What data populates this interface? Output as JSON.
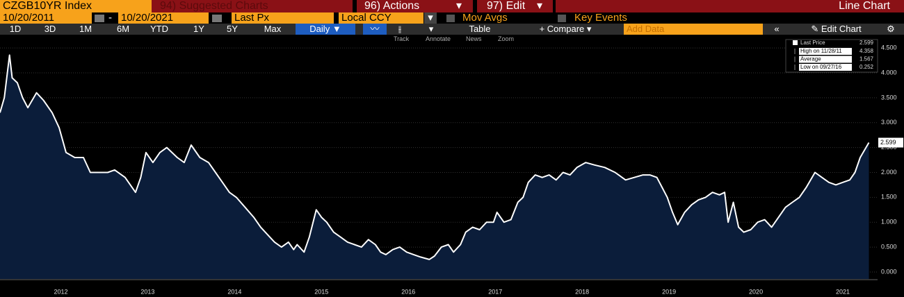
{
  "toolbar": {
    "security": "CZGB10YR Index",
    "suggested": "94) Suggested Charts",
    "actions": "96) Actions",
    "edit": "97) Edit",
    "chart_type": "Line Chart"
  },
  "controls": {
    "start_date": "10/20/2011",
    "end_date": "10/20/2021",
    "field": "Last Px",
    "currency": "Local CCY",
    "mov_avgs": "Mov Avgs",
    "key_events": "Key Events"
  },
  "periods": [
    "1D",
    "3D",
    "1M",
    "6M",
    "YTD",
    "1Y",
    "5Y",
    "Max"
  ],
  "buttons": {
    "frequency": "Daily",
    "table": "Table",
    "compare": "Compare",
    "add_data": "Add Data",
    "edit_chart": "Edit Chart"
  },
  "tools": [
    "Track",
    "Annotate",
    "News",
    "Zoom"
  ],
  "chart_data": {
    "type": "line",
    "x": [
      2011.8,
      2011.85,
      2011.91,
      2011.94,
      2012.0,
      2012.06,
      2012.12,
      2012.22,
      2012.3,
      2012.4,
      2012.48,
      2012.56,
      2012.66,
      2012.76,
      2012.84,
      2012.94,
      2013.04,
      2013.12,
      2013.24,
      2013.36,
      2013.42,
      2013.48,
      2013.56,
      2013.64,
      2013.72,
      2013.84,
      2013.92,
      2014.0,
      2014.1,
      2014.2,
      2014.28,
      2014.36,
      2014.44,
      2014.52,
      2014.62,
      2014.72,
      2014.8,
      2014.88,
      2014.96,
      2015.04,
      2015.12,
      2015.18,
      2015.22,
      2015.3,
      2015.36,
      2015.44,
      2015.5,
      2015.56,
      2015.64,
      2015.72,
      2015.8,
      2015.88,
      2015.96,
      2016.04,
      2016.12,
      2016.18,
      2016.24,
      2016.32,
      2016.4,
      2016.48,
      2016.56,
      2016.64,
      2016.74,
      2016.8,
      2016.88,
      2016.96,
      2017.02,
      2017.1,
      2017.16,
      2017.24,
      2017.32,
      2017.4,
      2017.48,
      2017.52,
      2017.6,
      2017.68,
      2017.76,
      2017.82,
      2017.88,
      2017.96,
      2018.04,
      2018.12,
      2018.2,
      2018.28,
      2018.36,
      2018.44,
      2018.54,
      2018.64,
      2018.76,
      2018.88,
      2019.0,
      2019.1,
      2019.2,
      2019.28,
      2019.36,
      2019.42,
      2019.48,
      2019.54,
      2019.6,
      2019.68,
      2019.76,
      2019.84,
      2019.92,
      2020.0,
      2020.08,
      2020.14,
      2020.18,
      2020.24,
      2020.3,
      2020.36,
      2020.44,
      2020.52,
      2020.6,
      2020.68,
      2020.76,
      2020.84,
      2020.92,
      2021.0,
      2021.08,
      2021.18,
      2021.26,
      2021.34,
      2021.42,
      2021.5,
      2021.58,
      2021.64,
      2021.7,
      2021.8
    ],
    "series": [
      {
        "name": "Last Price",
        "color": "#ffffff",
        "fill": "#0b1d3a",
        "values": [
          3.2,
          3.5,
          4.358,
          3.9,
          3.8,
          3.5,
          3.3,
          3.6,
          3.45,
          3.2,
          2.9,
          2.4,
          2.3,
          2.3,
          2.0,
          2.0,
          2.0,
          2.05,
          1.9,
          1.6,
          1.9,
          2.4,
          2.2,
          2.4,
          2.5,
          2.3,
          2.2,
          2.55,
          2.3,
          2.2,
          2.0,
          1.8,
          1.6,
          1.5,
          1.3,
          1.1,
          0.9,
          0.75,
          0.6,
          0.5,
          0.6,
          0.45,
          0.55,
          0.4,
          0.7,
          1.25,
          1.1,
          1.0,
          0.8,
          0.7,
          0.6,
          0.55,
          0.5,
          0.65,
          0.55,
          0.4,
          0.35,
          0.45,
          0.5,
          0.4,
          0.35,
          0.3,
          0.252,
          0.32,
          0.5,
          0.55,
          0.4,
          0.55,
          0.8,
          0.9,
          0.85,
          1.0,
          1.0,
          1.2,
          1.0,
          1.05,
          1.4,
          1.5,
          1.8,
          1.95,
          1.9,
          1.95,
          1.85,
          2.0,
          1.95,
          2.1,
          2.2,
          2.15,
          2.1,
          2.0,
          1.85,
          1.9,
          1.95,
          1.95,
          1.9,
          1.7,
          1.5,
          1.2,
          0.95,
          1.2,
          1.35,
          1.45,
          1.5,
          1.6,
          1.55,
          1.6,
          1.0,
          1.4,
          0.9,
          0.8,
          0.85,
          1.0,
          1.05,
          0.9,
          1.1,
          1.3,
          1.4,
          1.5,
          1.7,
          2.0,
          1.9,
          1.8,
          1.75,
          1.8,
          1.85,
          2.0,
          2.3,
          2.599
        ]
      }
    ],
    "stats": [
      {
        "label": "High on 11/28/11",
        "value": 4.358
      },
      {
        "label": "Average",
        "value": 1.567
      },
      {
        "label": "Low on 09/27/16",
        "value": 0.252
      }
    ],
    "xlim": [
      2011.8,
      2021.9
    ],
    "xticks": [
      {
        "value": 2012.5,
        "label": "2012"
      },
      {
        "value": 2013.5,
        "label": "2013"
      },
      {
        "value": 2014.5,
        "label": "2014"
      },
      {
        "value": 2015.5,
        "label": "2015"
      },
      {
        "value": 2016.5,
        "label": "2016"
      },
      {
        "value": 2017.5,
        "label": "2017"
      },
      {
        "value": 2018.5,
        "label": "2018"
      },
      {
        "value": 2019.5,
        "label": "2019"
      },
      {
        "value": 2020.5,
        "label": "2020"
      },
      {
        "value": 2021.5,
        "label": "2021"
      }
    ],
    "ylim": [
      -0.14,
      4.6
    ],
    "yticks": [
      {
        "value": 0,
        "label": "0.000"
      },
      {
        "value": 0.5,
        "label": "0.500"
      },
      {
        "value": 1,
        "label": "1.000"
      },
      {
        "value": 1.5,
        "label": "1.500"
      },
      {
        "value": 2,
        "label": "2.000"
      },
      {
        "value": 2.5,
        "label": "2.500"
      },
      {
        "value": 3,
        "label": "3.000"
      },
      {
        "value": 3.5,
        "label": "3.500"
      },
      {
        "value": 4,
        "label": "4.000"
      },
      {
        "value": 4.5,
        "label": "4.500"
      }
    ],
    "grid": true
  }
}
